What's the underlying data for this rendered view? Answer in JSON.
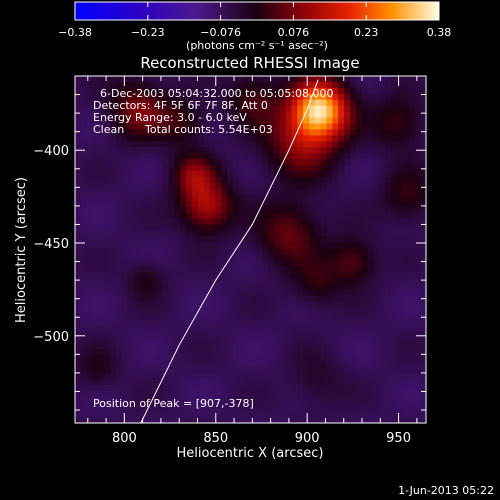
{
  "chart_data": {
    "type": "heatmap",
    "title": "Reconstructed RHESSI Image",
    "xlabel": "Heliocentric X (arcsec)",
    "ylabel": "Heliocentric Y (arcsec)",
    "xlim": [
      773,
      965
    ],
    "ylim": [
      -547,
      -360
    ],
    "x_ticks": [
      800,
      850,
      900,
      950
    ],
    "y_ticks": [
      -400,
      -450,
      -500
    ],
    "colorbar": {
      "min": -0.38,
      "max": 0.38,
      "ticks": [
        "-0.38",
        "-0.23",
        "-0.076",
        "0.076",
        "0.23",
        "0.38"
      ],
      "unit_label": "(photons cm⁻² s⁻¹ asec⁻²)"
    },
    "annotations": {
      "time_range": "6-Dec-2003 05:04:32.000 to 05:05:08.000",
      "detectors": "Detectors: 4F 5F 6F 7F 8F, Att 0",
      "energy": "Energy Range: 3.0 - 6.0 keV",
      "clean_label": "Clean",
      "total_counts": "Total counts: 5.54E+03",
      "peak": "Position of Peak = [907,-378]"
    },
    "peak": {
      "x": 907,
      "y": -378
    },
    "intensity_sources": [
      {
        "x": 907,
        "y": -378,
        "amp": 0.38,
        "sigma": 11
      },
      {
        "x": 897,
        "y": -395,
        "amp": 0.16,
        "sigma": 14
      },
      {
        "x": 845,
        "y": -430,
        "amp": 0.2,
        "sigma": 10
      },
      {
        "x": 838,
        "y": -413,
        "amp": 0.14,
        "sigma": 8
      },
      {
        "x": 808,
        "y": -378,
        "amp": 0.15,
        "sigma": 11
      },
      {
        "x": 832,
        "y": -385,
        "amp": 0.09,
        "sigma": 9
      },
      {
        "x": 870,
        "y": -372,
        "amp": 0.1,
        "sigma": 10
      },
      {
        "x": 950,
        "y": -385,
        "amp": 0.1,
        "sigma": 10
      },
      {
        "x": 890,
        "y": -445,
        "amp": 0.13,
        "sigma": 12
      },
      {
        "x": 925,
        "y": -460,
        "amp": 0.12,
        "sigma": 9
      },
      {
        "x": 955,
        "y": -425,
        "amp": 0.09,
        "sigma": 10
      },
      {
        "x": 905,
        "y": -472,
        "amp": 0.08,
        "sigma": 9
      },
      {
        "x": 812,
        "y": -470,
        "amp": 0.07,
        "sigma": 7
      },
      {
        "x": 785,
        "y": -518,
        "amp": 0.06,
        "sigma": 8
      },
      {
        "x": 905,
        "y": -525,
        "amp": 0.05,
        "sigma": 10
      }
    ],
    "limb_curve": [
      [
        809,
        -547
      ],
      [
        830,
        -505
      ],
      [
        850,
        -470
      ],
      [
        870,
        -440
      ],
      [
        890,
        -400
      ],
      [
        900,
        -378
      ],
      [
        906,
        -362
      ]
    ],
    "background_level": -0.07,
    "footer_date": "1-Jun-2013 05:22"
  }
}
